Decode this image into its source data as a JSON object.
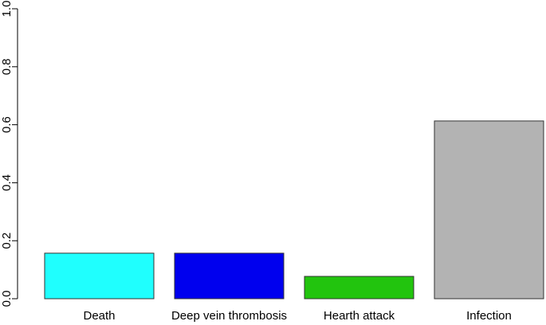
{
  "chart_data": {
    "type": "bar",
    "categories": [
      "Death",
      "Deep vein thrombosis",
      "Hearth attack",
      "Infection"
    ],
    "values": [
      0.157,
      0.157,
      0.077,
      0.613
    ],
    "colors": [
      "#1ffffe",
      "#0000ee",
      "#22c40e",
      "#b3b3b3"
    ],
    "ylim": [
      0,
      1
    ],
    "yticks": [
      {
        "value": 0,
        "label": "0.0"
      },
      0.2,
      0.4,
      0.6,
      0.8,
      {
        "value": 1,
        "label": "1.0"
      }
    ]
  }
}
